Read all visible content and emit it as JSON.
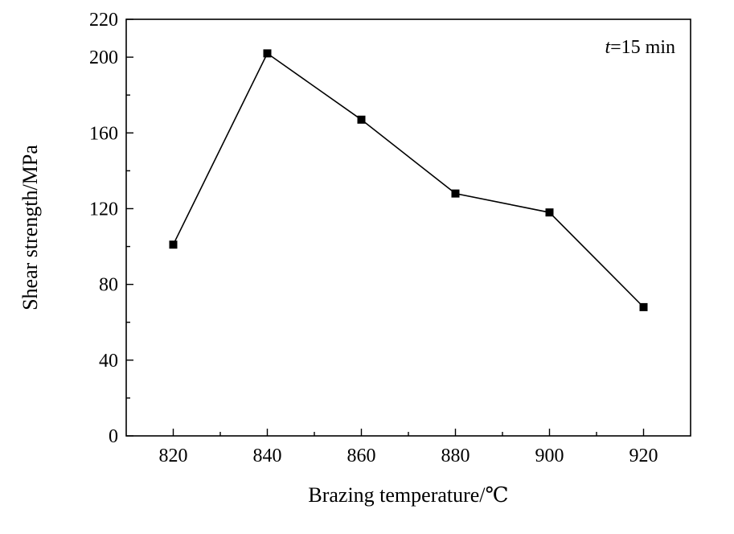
{
  "chart_data": {
    "type": "line",
    "xlabel": "Brazing temperature/℃",
    "ylabel": "Shear strength/MPa",
    "annotation": {
      "var": "t",
      "rest": "=15 min"
    },
    "x": [
      820,
      840,
      860,
      880,
      900,
      920
    ],
    "series": [
      {
        "name": "",
        "values": [
          101,
          202,
          167,
          128,
          118,
          68
        ]
      }
    ],
    "xlim": [
      810,
      930
    ],
    "ylim": [
      0,
      220
    ],
    "xticks": [
      820,
      840,
      860,
      880,
      900,
      920
    ],
    "yticks": [
      0,
      40,
      80,
      120,
      160,
      200,
      220
    ],
    "marker": "square",
    "line_color": "#000000",
    "grid": false,
    "legend": "none"
  }
}
